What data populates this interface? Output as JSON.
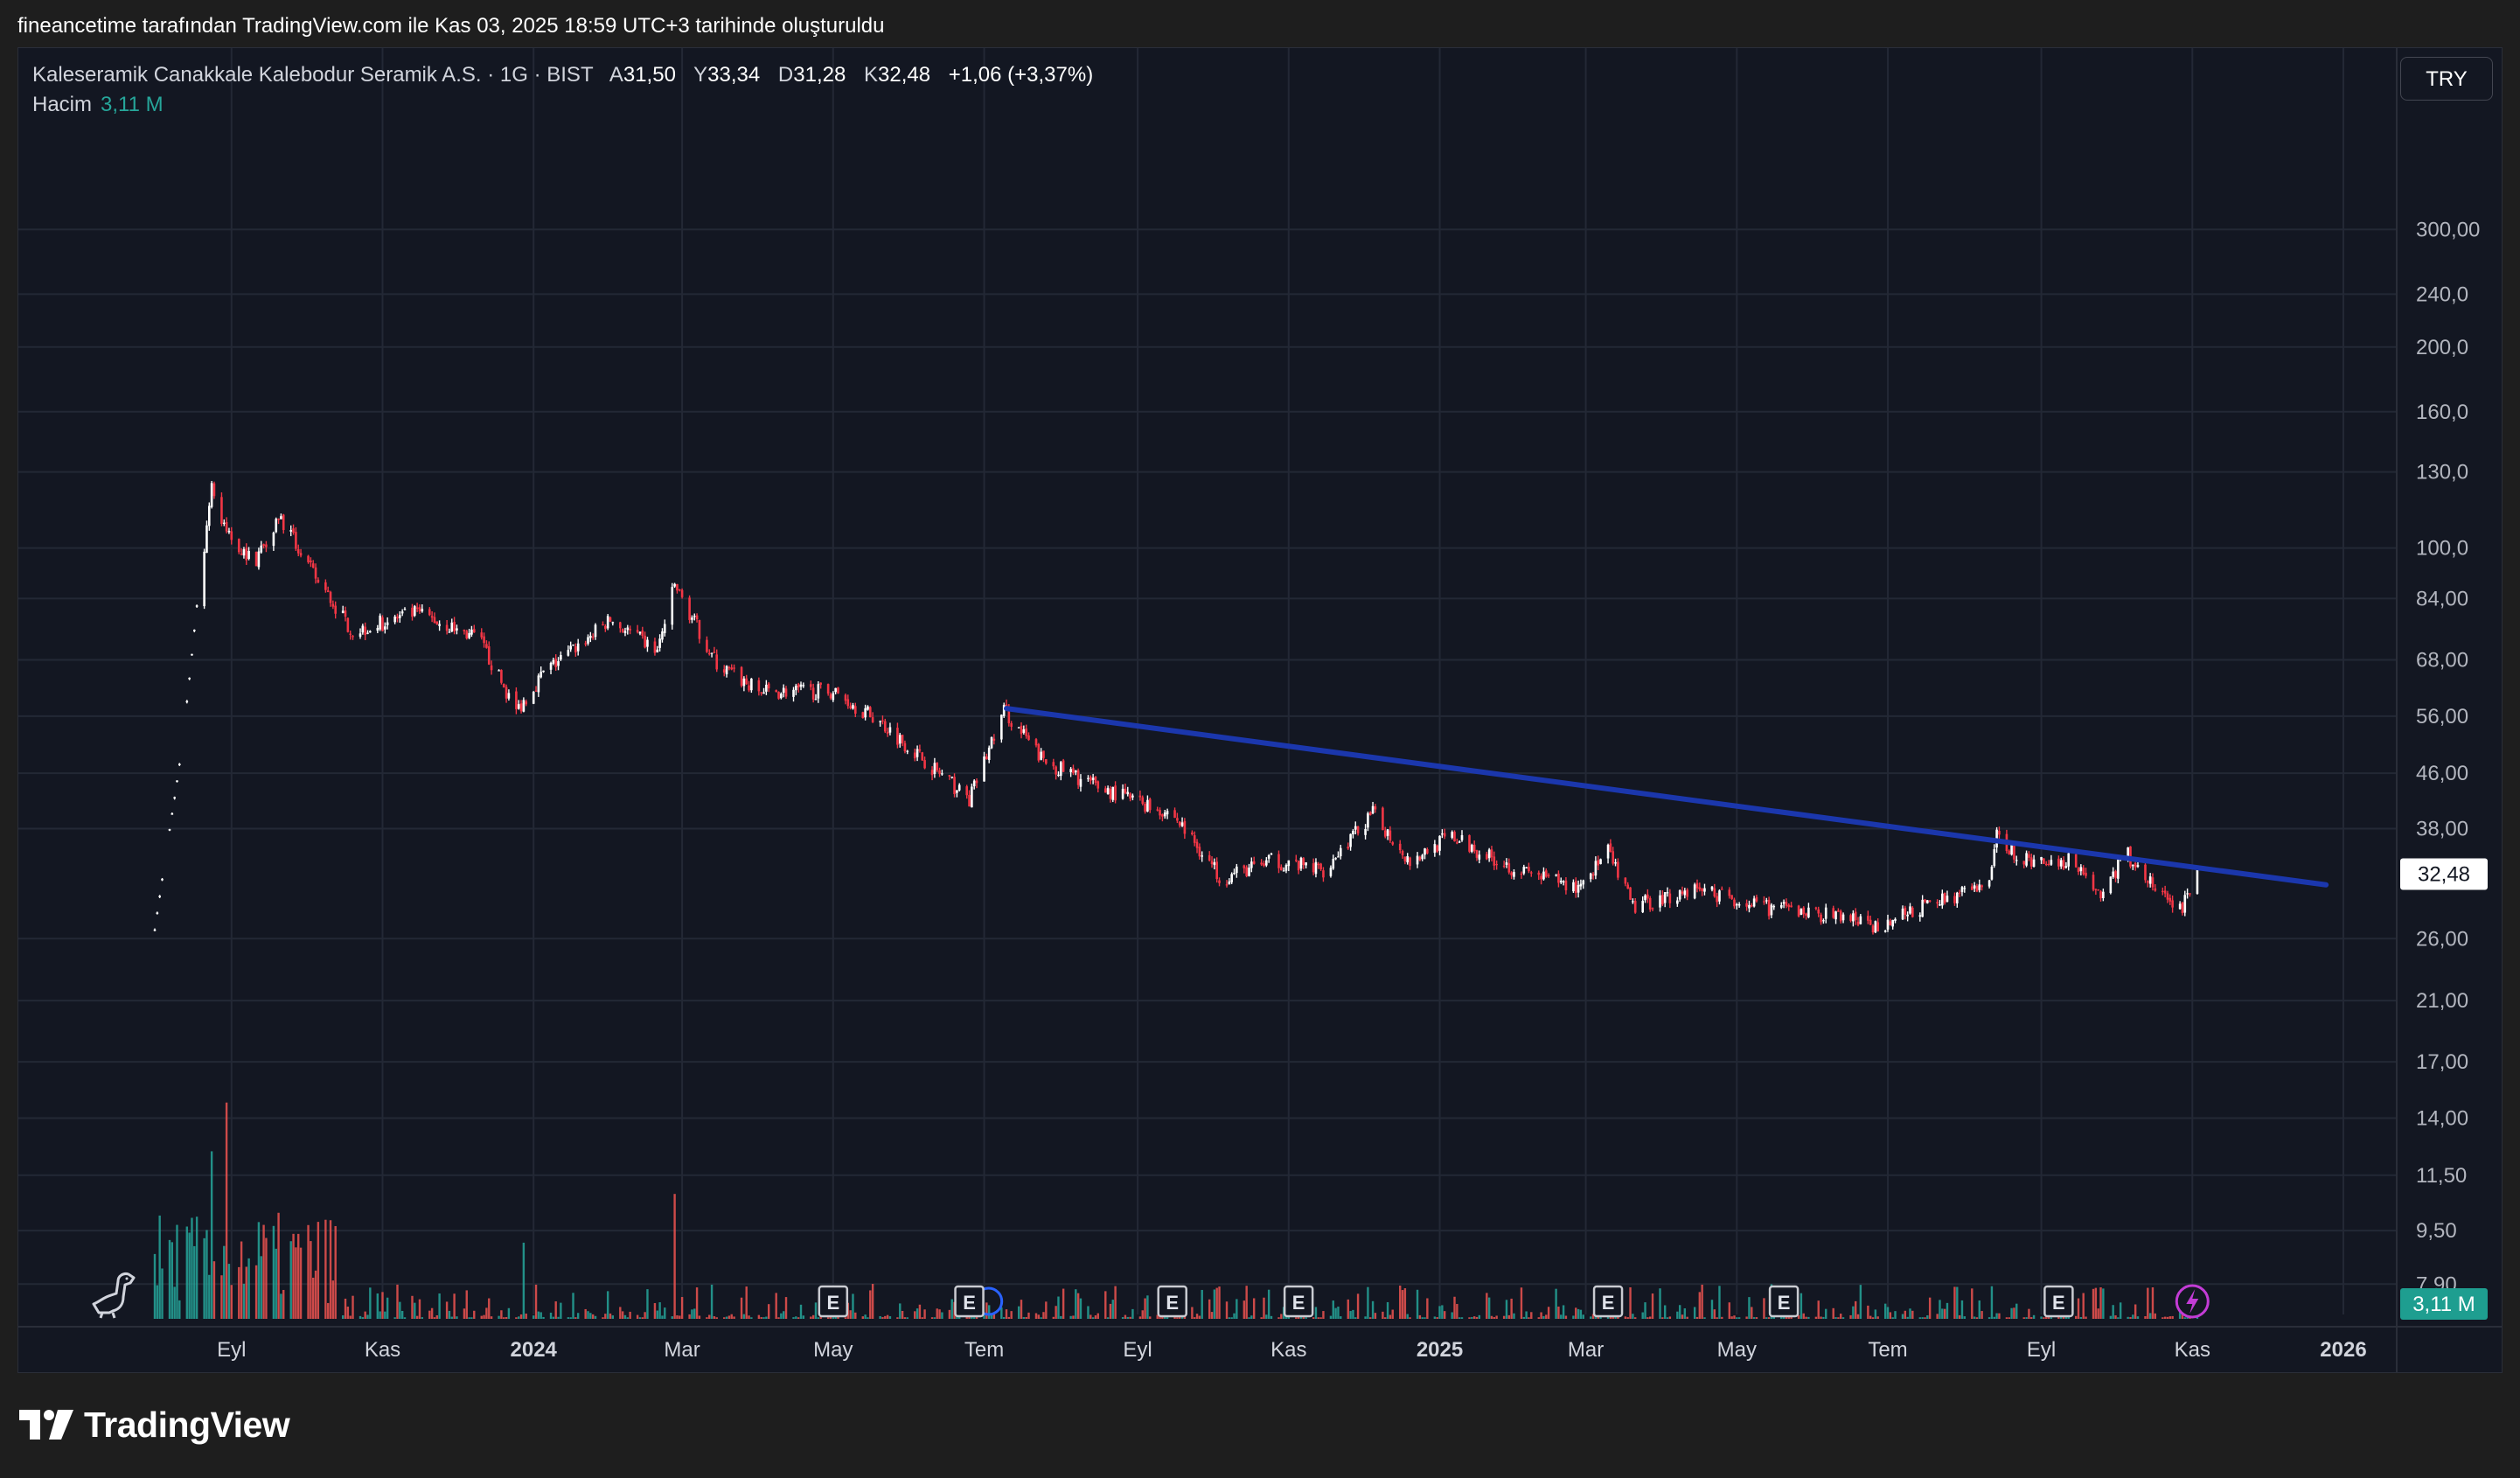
{
  "caption": "fineancetime tarafından TradingView.com ile Kas 03, 2025 18:59 UTC+3 tarihinde oluşturuldu",
  "legend": {
    "symbol": "Kaleseramik Canakkale Kalebodur Seramik A.S. · 1G · BIST",
    "open_label": "A",
    "open": "31,50",
    "high_label": "Y",
    "high": "33,34",
    "low_label": "D",
    "low": "31,28",
    "close_label": "K",
    "close": "32,48",
    "change": "+1,06 (+3,37%)",
    "volume_label": "Hacim",
    "volume": "3,11 M"
  },
  "currency_button": "TRY",
  "brand_name": "TradingView",
  "colors": {
    "background": "#131722",
    "up": "#ffffff",
    "down": "#f23645",
    "vol_up": "#26a69a",
    "vol_down": "#ef5350",
    "trendline": "#1b37ad",
    "event_purple": "#c33cd6",
    "grid": "#232835"
  },
  "chart_data": {
    "type": "candlestick",
    "scale": "log",
    "symbol": "KLSER",
    "interval": "1G",
    "exchange": "BIST",
    "currency": "TRY",
    "y_ticks": [
      "300,00",
      "240,0",
      "200,0",
      "160,0",
      "130,0",
      "100,0",
      "84,00",
      "68,00",
      "56,00",
      "46,00",
      "38,00",
      "26,00",
      "21,00",
      "17,00",
      "14,00",
      "11,50",
      "9,50",
      "7,90"
    ],
    "x_ticks": [
      {
        "label": "Eyl",
        "date": "2023-09-01",
        "bold": false
      },
      {
        "label": "Kas",
        "date": "2023-11-01",
        "bold": false
      },
      {
        "label": "2024",
        "date": "2024-01-01",
        "bold": true
      },
      {
        "label": "Mar",
        "date": "2024-03-01",
        "bold": false
      },
      {
        "label": "May",
        "date": "2024-05-01",
        "bold": false
      },
      {
        "label": "Tem",
        "date": "2024-07-01",
        "bold": false
      },
      {
        "label": "Eyl",
        "date": "2024-09-01",
        "bold": false
      },
      {
        "label": "Kas",
        "date": "2024-11-01",
        "bold": false
      },
      {
        "label": "2025",
        "date": "2025-01-01",
        "bold": true
      },
      {
        "label": "Mar",
        "date": "2025-03-01",
        "bold": false
      },
      {
        "label": "May",
        "date": "2025-05-01",
        "bold": false
      },
      {
        "label": "Tem",
        "date": "2025-07-01",
        "bold": false
      },
      {
        "label": "Eyl",
        "date": "2025-09-01",
        "bold": false
      },
      {
        "label": "Kas",
        "date": "2025-11-01",
        "bold": false
      },
      {
        "label": "2026",
        "date": "2026-01-01",
        "bold": true
      }
    ],
    "price_path": [
      {
        "date": "2023-08-01",
        "close": 27
      },
      {
        "date": "2023-08-12",
        "close": 50
      },
      {
        "date": "2023-08-18",
        "close": 82
      },
      {
        "date": "2023-08-24",
        "close": 125
      },
      {
        "date": "2023-08-28",
        "close": 108
      },
      {
        "date": "2023-09-10",
        "close": 95
      },
      {
        "date": "2023-09-20",
        "close": 112
      },
      {
        "date": "2023-10-05",
        "close": 90
      },
      {
        "date": "2023-10-20",
        "close": 75
      },
      {
        "date": "2023-11-15",
        "close": 80
      },
      {
        "date": "2023-12-10",
        "close": 73
      },
      {
        "date": "2023-12-25",
        "close": 57
      },
      {
        "date": "2024-01-05",
        "close": 65
      },
      {
        "date": "2024-02-01",
        "close": 78
      },
      {
        "date": "2024-02-20",
        "close": 70
      },
      {
        "date": "2024-02-27",
        "close": 88
      },
      {
        "date": "2024-03-15",
        "close": 67
      },
      {
        "date": "2024-04-01",
        "close": 61
      },
      {
        "date": "2024-05-01",
        "close": 61
      },
      {
        "date": "2024-05-20",
        "close": 55
      },
      {
        "date": "2024-06-10",
        "close": 47
      },
      {
        "date": "2024-06-25",
        "close": 42
      },
      {
        "date": "2024-07-09",
        "close": 57
      },
      {
        "date": "2024-07-25",
        "close": 48
      },
      {
        "date": "2024-08-15",
        "close": 44
      },
      {
        "date": "2024-09-15",
        "close": 40
      },
      {
        "date": "2024-10-05",
        "close": 32
      },
      {
        "date": "2024-10-25",
        "close": 34
      },
      {
        "date": "2024-11-15",
        "close": 33
      },
      {
        "date": "2024-12-05",
        "close": 40
      },
      {
        "date": "2024-12-20",
        "close": 34
      },
      {
        "date": "2025-01-05",
        "close": 37
      },
      {
        "date": "2025-02-01",
        "close": 33
      },
      {
        "date": "2025-02-25",
        "close": 31
      },
      {
        "date": "2025-03-10",
        "close": 35
      },
      {
        "date": "2025-03-20",
        "close": 29
      },
      {
        "date": "2025-04-15",
        "close": 31
      },
      {
        "date": "2025-05-10",
        "close": 29
      },
      {
        "date": "2025-06-15",
        "close": 28
      },
      {
        "date": "2025-06-25",
        "close": 27
      },
      {
        "date": "2025-07-25",
        "close": 30
      },
      {
        "date": "2025-08-10",
        "close": 31
      },
      {
        "date": "2025-08-14",
        "close": 37
      },
      {
        "date": "2025-08-25",
        "close": 34
      },
      {
        "date": "2025-09-15",
        "close": 34
      },
      {
        "date": "2025-09-25",
        "close": 30
      },
      {
        "date": "2025-10-05",
        "close": 35
      },
      {
        "date": "2025-10-20",
        "close": 30
      },
      {
        "date": "2025-10-28",
        "close": 29
      },
      {
        "date": "2025-11-03",
        "close": 32.48
      }
    ],
    "trendline": {
      "from": {
        "date": "2024-07-10",
        "price": 57.5
      },
      "to": {
        "date": "2025-12-25",
        "price": 31.3
      }
    },
    "last_price_label": "32,48",
    "last_volume_label": "3,11 M",
    "volume_max": 17.8,
    "volume_spikes": [
      {
        "date": "2023-08-20",
        "value": 17.8,
        "up": true
      },
      {
        "date": "2023-08-26",
        "value": 12.8,
        "up": false
      },
      {
        "date": "2023-08-30",
        "value": 14.2,
        "up": false
      },
      {
        "date": "2023-08-24",
        "value": 11.0,
        "up": true
      },
      {
        "date": "2024-02-27",
        "value": 8.2,
        "up": false
      },
      {
        "date": "2023-12-28",
        "value": 5.0,
        "up": true
      }
    ],
    "event_markers": [
      {
        "label": "E",
        "date": "2024-05-01"
      },
      {
        "label": "E",
        "date": "2024-06-25"
      },
      {
        "label": "E",
        "date": "2024-09-15"
      },
      {
        "label": "E",
        "date": "2024-11-05"
      },
      {
        "label": "E",
        "date": "2025-03-10"
      },
      {
        "label": "E",
        "date": "2025-05-20"
      },
      {
        "label": "E",
        "date": "2025-09-08"
      }
    ],
    "dividend_marker": {
      "icon": "lightning-icon",
      "date": "2025-11-01"
    },
    "split_marker": {
      "date": "2024-06-30"
    }
  }
}
